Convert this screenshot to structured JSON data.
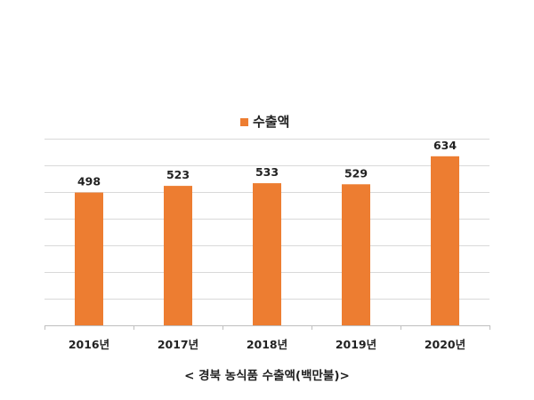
{
  "chart_data": {
    "type": "bar",
    "categories": [
      "2016년",
      "2017년",
      "2018년",
      "2019년",
      "2020년"
    ],
    "series": [
      {
        "name": "수출액",
        "values": [
          498,
          523,
          533,
          529,
          634
        ]
      }
    ],
    "data_labels": [
      "498",
      "523",
      "533",
      "529",
      "634"
    ],
    "title": "",
    "caption": "< 경북 농식품 수출액(백만불)>",
    "xlabel": "",
    "ylabel": "",
    "ylim": [
      0,
      700
    ],
    "y_gridline_step": 100,
    "grid": "horizontal",
    "y_tick_labels_visible": false,
    "legend": {
      "position": "top",
      "entries": [
        "수출액"
      ]
    },
    "colors": {
      "bar": "#ED7D31",
      "grid": "#D9D9D9",
      "axis": "#BFBFBF",
      "text": "#222222"
    }
  }
}
